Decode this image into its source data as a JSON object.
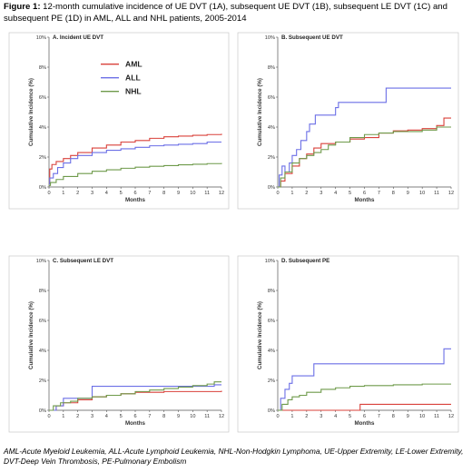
{
  "figure": {
    "title_bold": "Figure 1:",
    "title_text": " 12-month cumulative incidence of UE DVT (1A), subsequent UE DVT (1B), subsequent LE DVT (1C) and subsequent PE (1D) in AML, ALL and NHL patients, 2005-2014",
    "footnote": "AML-Acute Myeloid Leukemia, ALL-Acute Lymphoid Leukemia, NHL-Non-Hodgkin Lymphoma, UE-Upper Extremity, LE-Lower Extremity, DVT-Deep Vein Thrombosis, PE-Pulmonary Embolism"
  },
  "colors": {
    "AML": "#d9403a",
    "ALL": "#6b6fe6",
    "NHL": "#6e9a4a"
  },
  "chart_data": [
    {
      "type": "line",
      "step": true,
      "title": "A. Incident UE DVT",
      "xlabel": "Months",
      "ylabel": "Cumulative Incidence (%)",
      "xlim": [
        0,
        12
      ],
      "ylim": [
        0,
        10
      ],
      "xticks": [
        0,
        1,
        2,
        3,
        4,
        5,
        6,
        7,
        8,
        9,
        10,
        11,
        12
      ],
      "yticks": [
        "0%",
        "2%",
        "4%",
        "6%",
        "8%",
        "10%"
      ],
      "legend": "top-left",
      "series": [
        {
          "name": "AML",
          "x": [
            0,
            0.05,
            0.2,
            0.5,
            1,
            1.5,
            2,
            3,
            4,
            5,
            6,
            7,
            8,
            9,
            10,
            11,
            12
          ],
          "y": [
            0.3,
            1.2,
            1.5,
            1.7,
            1.9,
            2.1,
            2.3,
            2.6,
            2.8,
            3.0,
            3.1,
            3.25,
            3.35,
            3.4,
            3.45,
            3.5,
            3.55
          ]
        },
        {
          "name": "ALL",
          "x": [
            0,
            0.05,
            0.3,
            0.6,
            1,
            1.5,
            2,
            3,
            4,
            5,
            6,
            7,
            8,
            9,
            10,
            11,
            12
          ],
          "y": [
            0.2,
            0.6,
            0.9,
            1.3,
            1.6,
            1.9,
            2.1,
            2.3,
            2.45,
            2.55,
            2.65,
            2.75,
            2.8,
            2.85,
            2.9,
            3.0,
            3.0
          ]
        },
        {
          "name": "NHL",
          "x": [
            0,
            0.1,
            0.5,
            1,
            2,
            3,
            4,
            5,
            6,
            7,
            8,
            9,
            10,
            11,
            12
          ],
          "y": [
            0.1,
            0.3,
            0.5,
            0.7,
            0.9,
            1.05,
            1.15,
            1.25,
            1.32,
            1.38,
            1.43,
            1.48,
            1.52,
            1.56,
            1.6
          ]
        }
      ]
    },
    {
      "type": "line",
      "step": true,
      "title": "B. Subsequent UE DVT",
      "xlabel": "Months",
      "ylabel": "Cumulative Incidence (%)",
      "xlim": [
        0,
        12
      ],
      "ylim": [
        0,
        10
      ],
      "xticks": [
        0,
        1,
        2,
        3,
        4,
        5,
        6,
        7,
        8,
        9,
        10,
        11,
        12
      ],
      "yticks": [
        "0%",
        "2%",
        "4%",
        "6%",
        "8%",
        "10%"
      ],
      "series": [
        {
          "name": "AML",
          "x": [
            0,
            0.2,
            0.5,
            1,
            1.5,
            2,
            2.5,
            3,
            4,
            5,
            6,
            7,
            8,
            9,
            10,
            11,
            11.5,
            12
          ],
          "y": [
            0,
            0.4,
            0.9,
            1.4,
            1.9,
            2.2,
            2.6,
            2.9,
            3.0,
            3.2,
            3.3,
            3.6,
            3.75,
            3.8,
            3.9,
            4.1,
            4.6,
            4.6
          ]
        },
        {
          "name": "ALL",
          "x": [
            0,
            0.1,
            0.3,
            0.5,
            0.8,
            1,
            1.3,
            1.6,
            2,
            2.2,
            2.6,
            3,
            4,
            4.2,
            7.5,
            12
          ],
          "y": [
            0,
            0.8,
            1.4,
            1.0,
            1.6,
            2.1,
            2.5,
            3.1,
            3.7,
            4.2,
            4.8,
            4.8,
            5.3,
            5.65,
            6.6,
            6.6
          ]
        },
        {
          "name": "NHL",
          "x": [
            0,
            0.2,
            0.5,
            1,
            1.5,
            2,
            2.5,
            3,
            3.5,
            4,
            5,
            6,
            7,
            8,
            10,
            11,
            12
          ],
          "y": [
            0,
            0.6,
            1.0,
            1.6,
            1.9,
            2.1,
            2.3,
            2.5,
            2.8,
            3.0,
            3.3,
            3.5,
            3.6,
            3.7,
            3.8,
            4.0,
            4.0
          ]
        }
      ]
    },
    {
      "type": "line",
      "step": true,
      "title": "C. Subsequent LE DVT",
      "xlabel": "Months",
      "ylabel": "Cumulative Incidence (%)",
      "xlim": [
        0,
        12
      ],
      "ylim": [
        0,
        10
      ],
      "xticks": [
        0,
        1,
        2,
        3,
        4,
        5,
        6,
        7,
        8,
        9,
        10,
        11,
        12
      ],
      "yticks": [
        "0%",
        "2%",
        "4%",
        "6%",
        "8%",
        "10%"
      ],
      "series": [
        {
          "name": "AML",
          "x": [
            0,
            0.5,
            1,
            2,
            3,
            4,
            5,
            6,
            8,
            12
          ],
          "y": [
            0,
            0.3,
            0.5,
            0.7,
            0.9,
            1.0,
            1.1,
            1.2,
            1.25,
            1.3
          ]
        },
        {
          "name": "ALL",
          "x": [
            0,
            0.5,
            1,
            2,
            2.8,
            3,
            5,
            11.5,
            12
          ],
          "y": [
            0,
            0.3,
            0.8,
            0.8,
            0.8,
            1.6,
            1.6,
            1.7,
            1.7
          ]
        },
        {
          "name": "NHL",
          "x": [
            0,
            0.3,
            0.8,
            1.5,
            2,
            3,
            4,
            5,
            6,
            7,
            8,
            9,
            10,
            11,
            11.5,
            12
          ],
          "y": [
            0,
            0.3,
            0.5,
            0.6,
            0.8,
            0.9,
            1.0,
            1.1,
            1.25,
            1.35,
            1.45,
            1.55,
            1.65,
            1.75,
            1.9,
            1.9
          ]
        }
      ]
    },
    {
      "type": "line",
      "step": true,
      "title": "D. Subsequent PE",
      "xlabel": "Months",
      "ylabel": "Cumulative Incidence (%)",
      "xlim": [
        0,
        12
      ],
      "ylim": [
        0,
        10
      ],
      "xticks": [
        0,
        1,
        2,
        3,
        4,
        5,
        6,
        7,
        8,
        9,
        10,
        11,
        12
      ],
      "yticks": [
        "0%",
        "2%",
        "4%",
        "6%",
        "8%",
        "10%"
      ],
      "series": [
        {
          "name": "AML",
          "x": [
            0,
            5.7,
            12
          ],
          "y": [
            0,
            0.4,
            0.4
          ]
        },
        {
          "name": "ALL",
          "x": [
            0,
            0.2,
            0.5,
            0.8,
            1,
            2.5,
            11.5,
            12
          ],
          "y": [
            0,
            0.8,
            1.4,
            1.8,
            2.3,
            3.1,
            4.1,
            4.1
          ]
        },
        {
          "name": "NHL",
          "x": [
            0,
            0.3,
            0.7,
            1,
            1.5,
            2,
            3,
            4,
            5,
            6,
            8,
            10,
            12
          ],
          "y": [
            0,
            0.4,
            0.7,
            0.9,
            1.0,
            1.2,
            1.4,
            1.5,
            1.6,
            1.65,
            1.7,
            1.75,
            1.75
          ]
        }
      ]
    }
  ]
}
